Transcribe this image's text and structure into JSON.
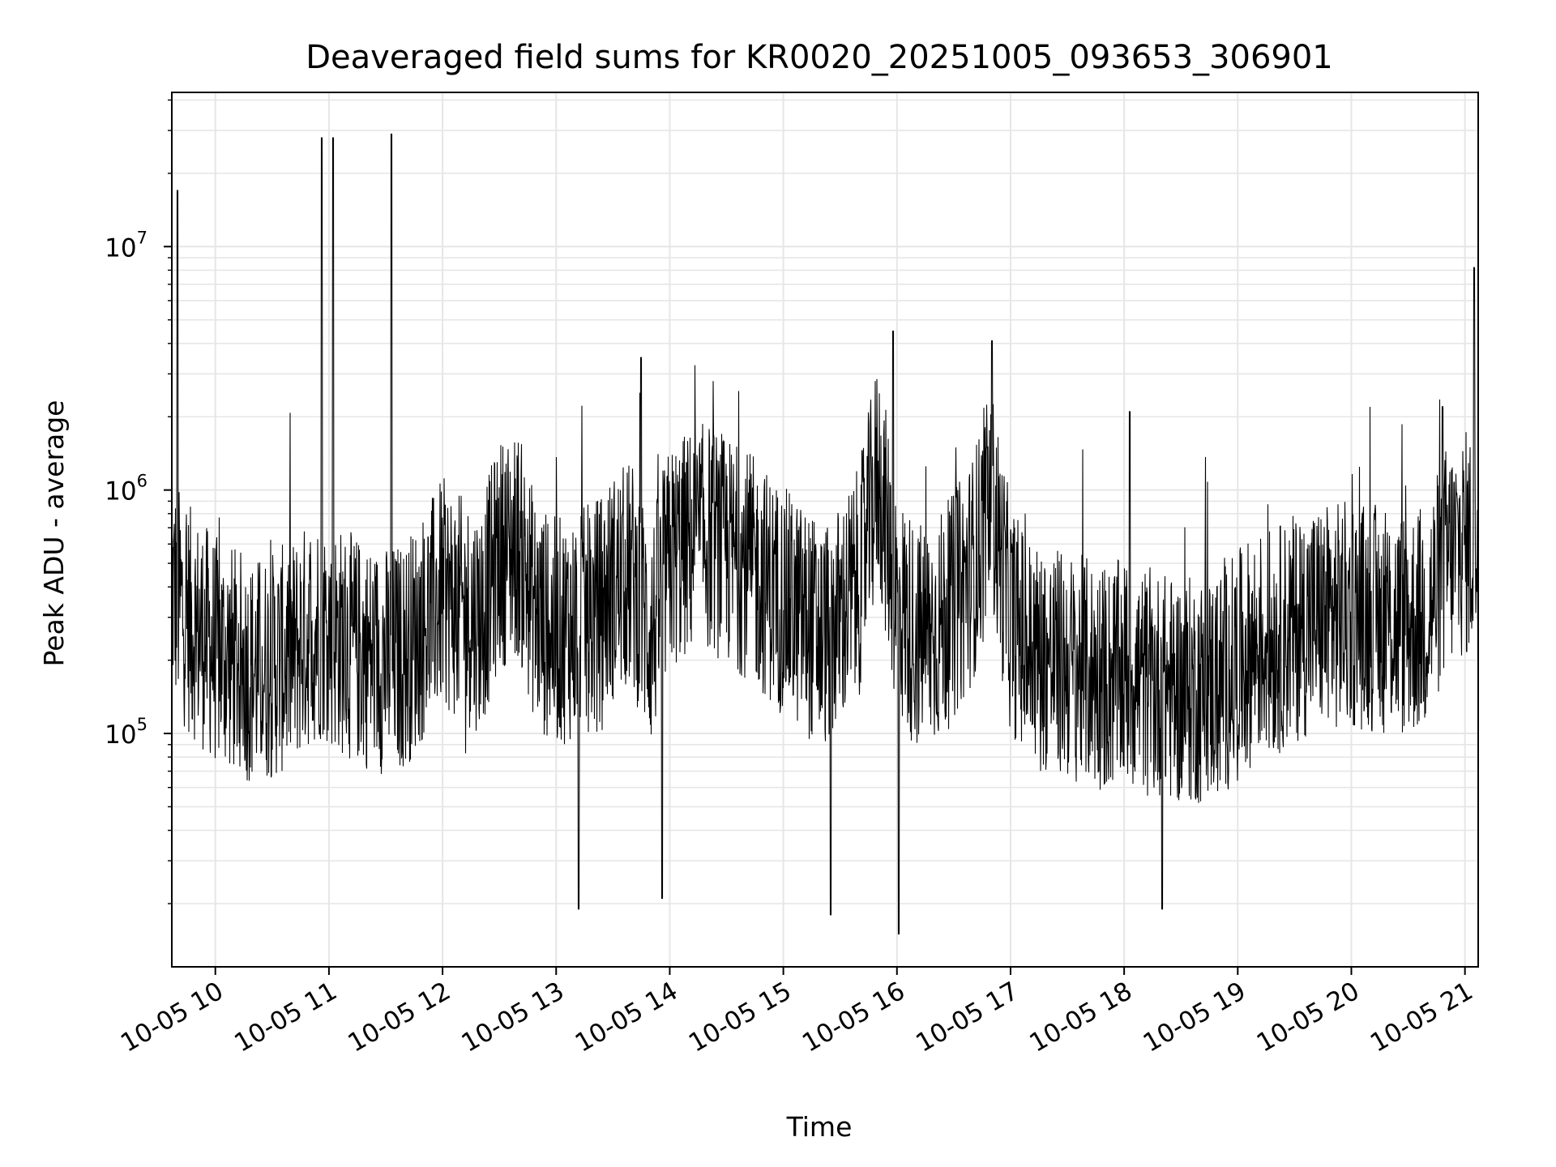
{
  "chart_data": {
    "type": "line",
    "title": "Deaveraged field sums for KR0020_20251005_093653_306901",
    "xlabel": "Time",
    "ylabel": "Peak ADU - average",
    "y_scale": "log",
    "grid": true,
    "grid_minor": true,
    "line_color": "#000000",
    "grid_color": "#e6e6e6",
    "x_range": [
      "2025-10-05 09:37",
      "2025-10-05 21:07"
    ],
    "y_range": [
      11000,
      43000000
    ],
    "x_ticks": [
      "10-05 10",
      "10-05 11",
      "10-05 12",
      "10-05 13",
      "10-05 14",
      "10-05 15",
      "10-05 16",
      "10-05 17",
      "10-05 18",
      "10-05 19",
      "10-05 20",
      "10-05 21"
    ],
    "y_ticks": [
      {
        "base": "10",
        "exp": "5",
        "value": 100000
      },
      {
        "base": "10",
        "exp": "6",
        "value": 1000000
      },
      {
        "base": "10",
        "exp": "7",
        "value": 10000000
      }
    ],
    "series": [
      {
        "x": [
          "2025-10-05 09:37",
          "2025-10-05 09:45",
          "2025-10-05 09:52",
          "2025-10-05 10:00",
          "2025-10-05 10:10",
          "2025-10-05 10:20",
          "2025-10-05 10:30",
          "2025-10-05 10:40",
          "2025-10-05 10:50",
          "2025-10-05 10:57",
          "2025-10-05 11:03",
          "2025-10-05 11:10",
          "2025-10-05 11:20",
          "2025-10-05 11:30",
          "2025-10-05 11:40",
          "2025-10-05 11:50",
          "2025-10-05 12:00",
          "2025-10-05 12:10",
          "2025-10-05 12:20",
          "2025-10-05 12:30",
          "2025-10-05 12:40",
          "2025-10-05 12:50",
          "2025-10-05 13:00",
          "2025-10-05 13:10",
          "2025-10-05 13:20",
          "2025-10-05 13:30",
          "2025-10-05 13:40",
          "2025-10-05 13:50",
          "2025-10-05 14:00",
          "2025-10-05 14:10",
          "2025-10-05 14:20",
          "2025-10-05 14:30",
          "2025-10-05 14:40",
          "2025-10-05 14:50",
          "2025-10-05 15:00",
          "2025-10-05 15:10",
          "2025-10-05 15:20",
          "2025-10-05 15:30",
          "2025-10-05 15:40",
          "2025-10-05 15:50",
          "2025-10-05 16:00",
          "2025-10-05 16:10",
          "2025-10-05 16:20",
          "2025-10-05 16:30",
          "2025-10-05 16:40",
          "2025-10-05 16:50",
          "2025-10-05 17:00",
          "2025-10-05 17:10",
          "2025-10-05 17:20",
          "2025-10-05 17:30",
          "2025-10-05 17:40",
          "2025-10-05 17:50",
          "2025-10-05 18:00",
          "2025-10-05 18:10",
          "2025-10-05 18:20",
          "2025-10-05 18:30",
          "2025-10-05 18:40",
          "2025-10-05 18:50",
          "2025-10-05 19:00",
          "2025-10-05 19:10",
          "2025-10-05 19:20",
          "2025-10-05 19:30",
          "2025-10-05 19:40",
          "2025-10-05 19:50",
          "2025-10-05 20:00",
          "2025-10-05 20:10",
          "2025-10-05 20:20",
          "2025-10-05 20:30",
          "2025-10-05 20:40",
          "2025-10-05 20:50",
          "2025-10-05 21:00",
          "2025-10-05 21:07"
        ],
        "y": [
          400000,
          300000,
          260000,
          220000,
          200000,
          180000,
          190000,
          210000,
          260000,
          280000,
          250000,
          230000,
          210000,
          200000,
          210000,
          280000,
          380000,
          320000,
          300000,
          550000,
          600000,
          300000,
          260000,
          280000,
          300000,
          400000,
          450000,
          250000,
          520000,
          600000,
          650000,
          560000,
          500000,
          420000,
          350000,
          300000,
          250000,
          300000,
          420000,
          1200000,
          350000,
          250000,
          260000,
          330000,
          480000,
          900000,
          300000,
          220000,
          200000,
          190000,
          180000,
          170000,
          175000,
          165000,
          155000,
          150000,
          150000,
          160000,
          190000,
          230000,
          240000,
          270000,
          300000,
          300000,
          310000,
          300000,
          290000,
          280000,
          300000,
          520000,
          600000,
          600000
        ],
        "spikes": [
          {
            "x": "2025-10-05 09:40",
            "y": 17000000
          },
          {
            "x": "2025-10-05 10:56",
            "y": 28000000
          },
          {
            "x": "2025-10-05 11:02",
            "y": 28000000
          },
          {
            "x": "2025-10-05 11:33",
            "y": 29000000
          },
          {
            "x": "2025-10-05 13:45",
            "y": 3500000
          },
          {
            "x": "2025-10-05 15:58",
            "y": 4500000
          },
          {
            "x": "2025-10-05 16:50",
            "y": 4100000
          },
          {
            "x": "2025-10-05 18:03",
            "y": 2100000
          },
          {
            "x": "2025-10-05 20:48",
            "y": 2200000
          },
          {
            "x": "2025-10-05 21:05",
            "y": 8200000
          }
        ],
        "dips": [
          {
            "x": "2025-10-05 13:12",
            "y": 19000
          },
          {
            "x": "2025-10-05 13:56",
            "y": 21000
          },
          {
            "x": "2025-10-05 15:25",
            "y": 18000
          },
          {
            "x": "2025-10-05 16:01",
            "y": 15000
          },
          {
            "x": "2025-10-05 18:20",
            "y": 19000
          }
        ]
      }
    ]
  }
}
